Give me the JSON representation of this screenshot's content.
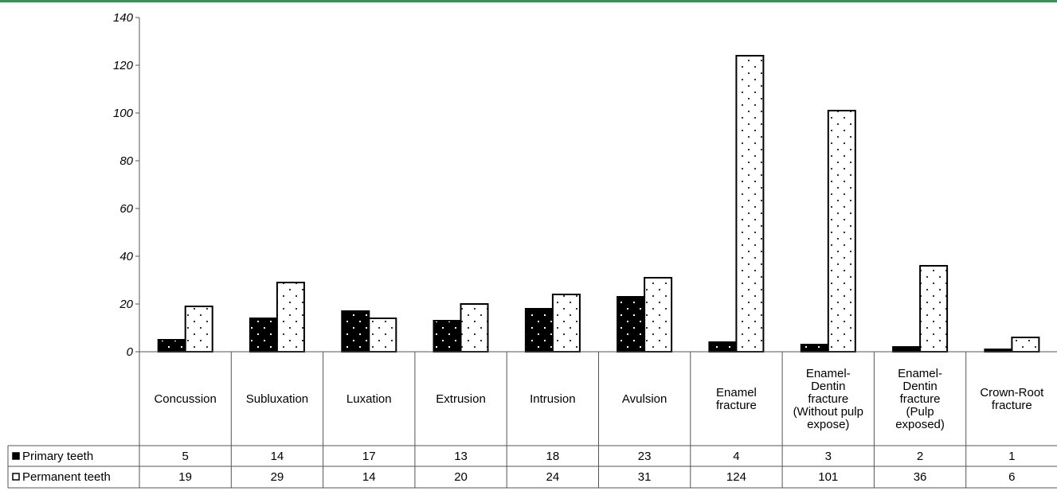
{
  "chart_data": {
    "type": "bar",
    "categories": [
      [
        "Concussion"
      ],
      [
        "Subluxation"
      ],
      [
        "Luxation"
      ],
      [
        "Extrusion"
      ],
      [
        "Intrusion"
      ],
      [
        "Avulsion"
      ],
      [
        "Enamel",
        "fracture"
      ],
      [
        "Enamel-",
        "Dentin",
        "fracture",
        "(Without pulp",
        "expose)"
      ],
      [
        "Enamel-",
        "Dentin",
        "fracture",
        "(Pulp",
        "exposed)"
      ],
      [
        "Crown-Root",
        "fracture"
      ]
    ],
    "series": [
      {
        "name": "Primary teeth",
        "values": [
          5,
          14,
          17,
          13,
          18,
          23,
          4,
          3,
          2,
          1
        ],
        "color": "#000000"
      },
      {
        "name": "Permanent teeth",
        "values": [
          19,
          29,
          14,
          20,
          24,
          31,
          124,
          101,
          36,
          6
        ],
        "color": "#ffffff"
      }
    ],
    "yticks": [
      "0",
      "20",
      "40",
      "60",
      "80",
      "100",
      "120",
      "140"
    ],
    "ylim": [
      0,
      140
    ],
    "legend": "data-table",
    "grid": false
  }
}
